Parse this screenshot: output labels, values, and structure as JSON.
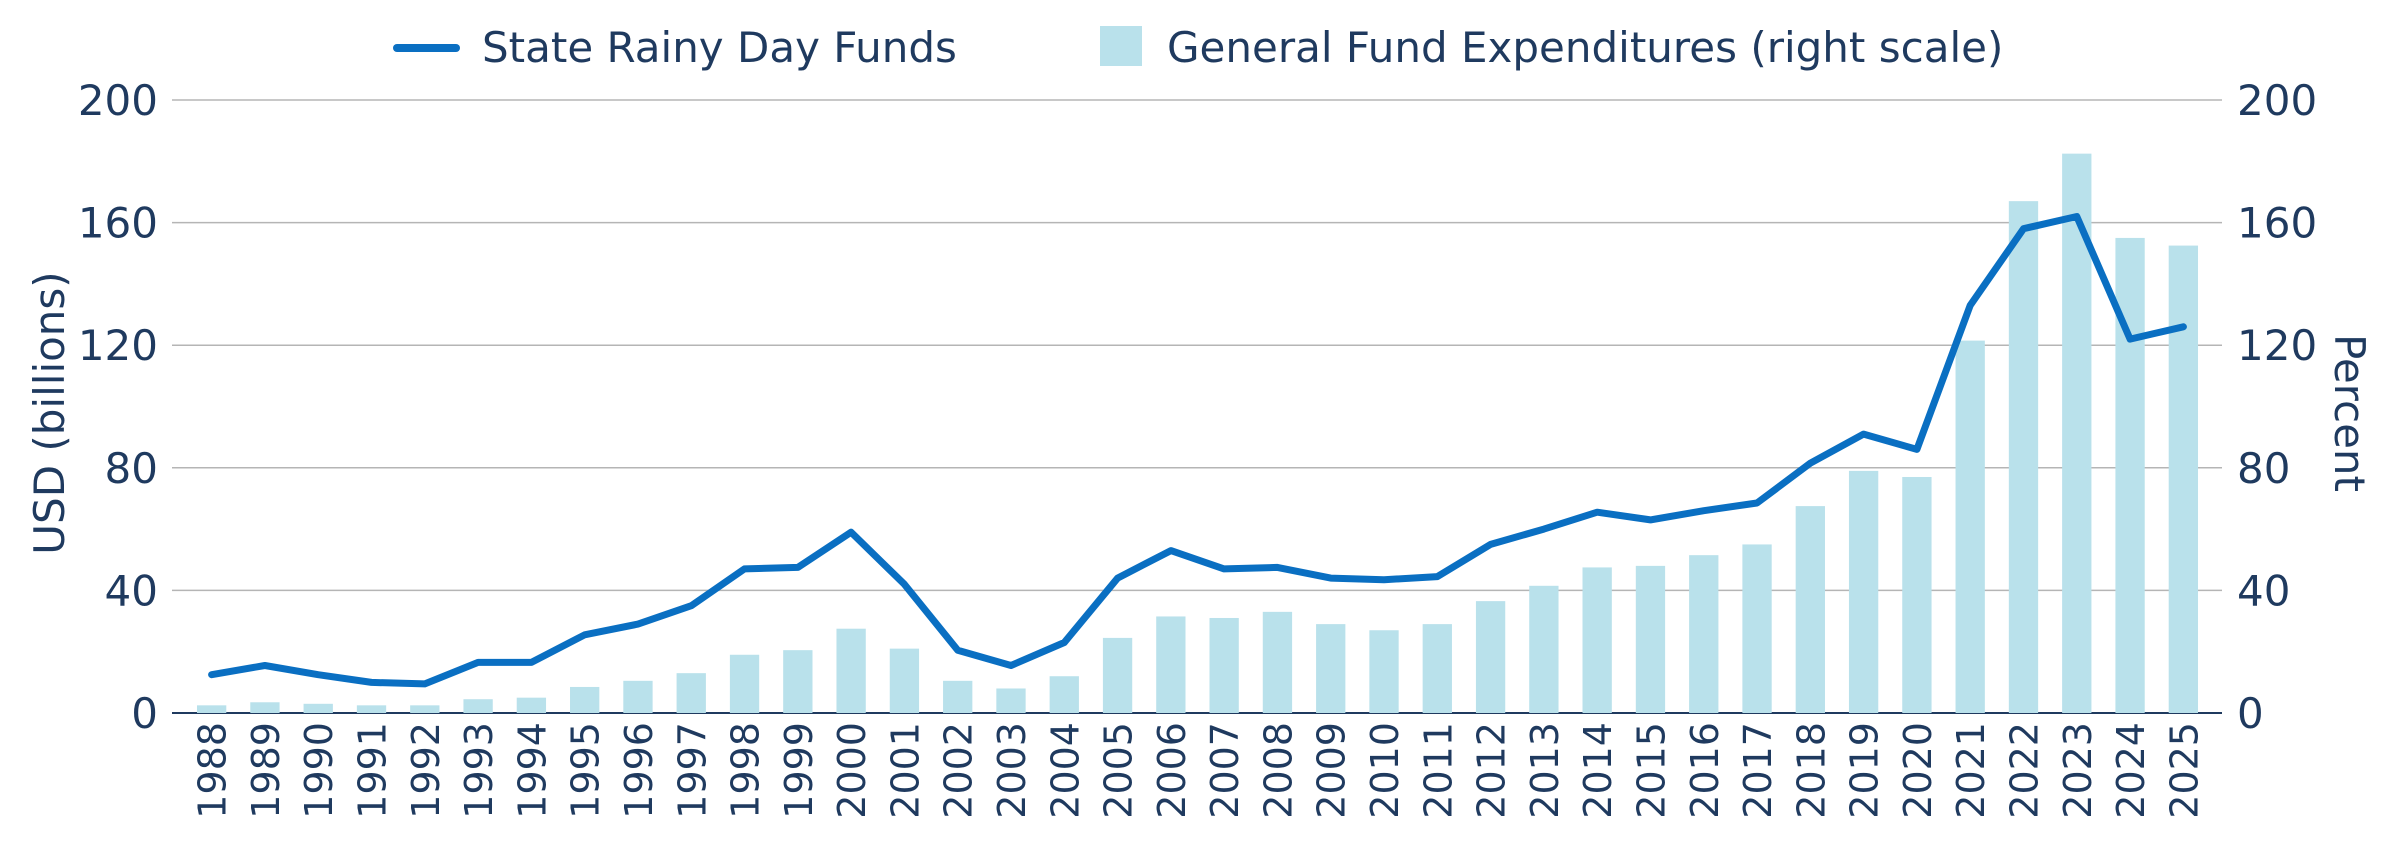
{
  "chart_data": {
    "type": "bar",
    "title": "",
    "legend": {
      "placement": "top",
      "entries": [
        "State Rainy Day Funds",
        "General Fund Expenditures (right scale)"
      ]
    },
    "y_left_label": "USD (billions)",
    "y_right_label": "Percent",
    "ylim_left": [
      0,
      200
    ],
    "ylim_right": [
      0,
      200
    ],
    "y_ticks": [
      "0",
      "40",
      "80",
      "120",
      "160",
      "200"
    ],
    "grid": true,
    "categories": [
      "1988",
      "1989",
      "1990",
      "1991",
      "1992",
      "1993",
      "1994",
      "1995",
      "1996",
      "1997",
      "1998",
      "1999",
      "2000",
      "2001",
      "2002",
      "2003",
      "2004",
      "2005",
      "2006",
      "2007",
      "2008",
      "2009",
      "2010",
      "2011",
      "2012",
      "2013",
      "2014",
      "2015",
      "2016",
      "2017",
      "2018",
      "2019",
      "2020",
      "2021",
      "2022",
      "2023",
      "2024",
      "2025"
    ],
    "series": [
      {
        "name": "State Rainy Day Funds",
        "type": "line",
        "axis": "left",
        "color": "#0a6fc2",
        "values": [
          12.5,
          15.5,
          12.5,
          10,
          9.5,
          16.5,
          16.5,
          25.5,
          29,
          35,
          47,
          47.5,
          59,
          42,
          20.5,
          15.5,
          23,
          44,
          53,
          47,
          47.5,
          44,
          43.5,
          44.5,
          55,
          60,
          65.5,
          63,
          66,
          68.5,
          81.5,
          91,
          86,
          133,
          158,
          162,
          122,
          126
        ]
      },
      {
        "name": "General Fund Expenditures (right scale)",
        "type": "bar",
        "axis": "right",
        "color": "#b9e1eb",
        "values": [
          2.5,
          3.5,
          3,
          2.5,
          2.5,
          4.5,
          5,
          8.5,
          10.5,
          13,
          19,
          20.5,
          27.5,
          21,
          10.5,
          8,
          12,
          24.5,
          31.5,
          31,
          33,
          29,
          27,
          29,
          36.5,
          41.5,
          47.5,
          48,
          51.5,
          55,
          67.5,
          79,
          77,
          121.5,
          167,
          182.5,
          155,
          152.5
        ]
      }
    ]
  }
}
